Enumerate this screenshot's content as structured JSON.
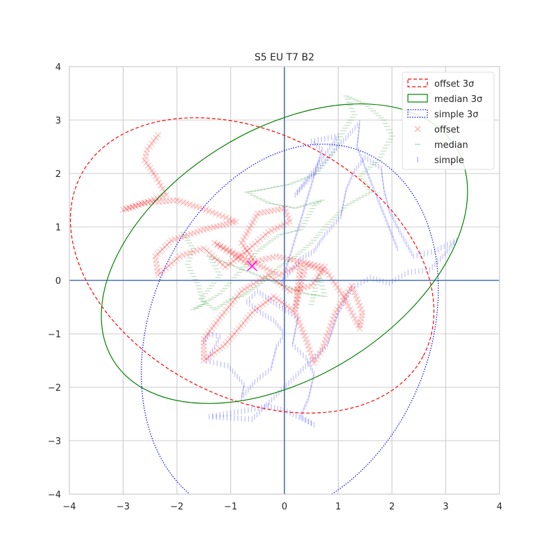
{
  "chart_data": {
    "type": "scatter",
    "title": "S5 EU T7 B2",
    "xlabel": "",
    "ylabel": "",
    "xlim": [
      -4,
      4
    ],
    "ylim": [
      -4,
      4
    ],
    "x_ticks": [
      -4,
      -3,
      -2,
      -1,
      0,
      1,
      2,
      3,
      4
    ],
    "y_ticks": [
      -4,
      -3,
      -2,
      -1,
      0,
      1,
      2,
      3,
      4
    ],
    "grid": true,
    "legend_position": "top-right",
    "zero_lines": true,
    "legend": [
      {
        "label": "offset 3σ",
        "kind": "ellipse",
        "color": "#ff0000",
        "dash": "dashed"
      },
      {
        "label": "median 3σ",
        "kind": "ellipse",
        "color": "#008000",
        "dash": "solid"
      },
      {
        "label": "simple 3σ",
        "kind": "ellipse",
        "color": "#0000ff",
        "dash": "dotted"
      },
      {
        "label": "offset",
        "kind": "marker",
        "marker": "x",
        "color": "#ff0000"
      },
      {
        "label": "median",
        "kind": "marker",
        "marker": "_",
        "color": "#008000"
      },
      {
        "label": "simple",
        "kind": "marker",
        "marker": "|",
        "color": "#0000ff"
      }
    ],
    "ellipses": [
      {
        "name": "offset 3σ",
        "center": [
          -0.6,
          0.28
        ],
        "semi_major": 3.6,
        "semi_minor": 2.45,
        "angle_deg": -28,
        "color": "#ff0000",
        "dash": "dashed"
      },
      {
        "name": "median 3σ",
        "center": [
          0.0,
          0.5
        ],
        "semi_major": 3.75,
        "semi_minor": 2.3,
        "angle_deg": 32,
        "color": "#008000",
        "dash": "solid"
      },
      {
        "name": "simple 3σ",
        "center": [
          0.1,
          -0.95
        ],
        "semi_major": 3.6,
        "semi_minor": 2.6,
        "angle_deg": 68,
        "color": "#0000ff",
        "dash": "dotted"
      }
    ],
    "series": [
      {
        "name": "offset",
        "marker": "x",
        "color": "#ff0000",
        "points": [
          [
            -2.35,
            2.72
          ],
          [
            -2.55,
            2.45
          ],
          [
            -2.6,
            2.25
          ],
          [
            -2.4,
            1.95
          ],
          [
            -2.2,
            1.6
          ],
          [
            -2.6,
            1.45
          ],
          [
            -3.0,
            1.32
          ],
          [
            -2.6,
            1.45
          ],
          [
            -2.0,
            1.5
          ],
          [
            -1.4,
            1.3
          ],
          [
            -0.9,
            1.1
          ],
          [
            -1.5,
            0.95
          ],
          [
            -2.1,
            0.75
          ],
          [
            -2.4,
            0.45
          ],
          [
            -2.35,
            0.1
          ],
          [
            -1.95,
            0.45
          ],
          [
            -1.5,
            0.6
          ],
          [
            -1.1,
            0.25
          ],
          [
            -0.7,
            0.55
          ],
          [
            -0.3,
            0.9
          ],
          [
            0.1,
            1.1
          ],
          [
            0.0,
            1.35
          ],
          [
            -0.5,
            1.25
          ],
          [
            -0.8,
            0.7
          ],
          [
            -0.55,
            0.35
          ],
          [
            -0.15,
            0.45
          ],
          [
            0.3,
            0.35
          ],
          [
            0.75,
            0.25
          ],
          [
            0.5,
            -0.1
          ],
          [
            0.1,
            -0.2
          ],
          [
            -0.3,
            0.1
          ],
          [
            -0.8,
            -0.2
          ],
          [
            -1.2,
            -0.7
          ],
          [
            -1.5,
            -1.1
          ],
          [
            -1.5,
            -1.5
          ],
          [
            -1.1,
            -1.2
          ],
          [
            -0.6,
            -0.6
          ],
          [
            -0.2,
            -0.3
          ],
          [
            0.2,
            -0.6
          ],
          [
            0.4,
            -1.1
          ],
          [
            0.55,
            -1.55
          ],
          [
            0.7,
            -1.3
          ],
          [
            0.95,
            -0.6
          ],
          [
            1.25,
            -0.1
          ],
          [
            1.45,
            -0.6
          ],
          [
            1.4,
            -0.9
          ],
          [
            1.1,
            -0.3
          ],
          [
            0.8,
            0.15
          ],
          [
            0.4,
            0.3
          ],
          [
            0.2,
            -0.55
          ],
          [
            0.3,
            0.3
          ],
          [
            -0.1,
            0.1
          ],
          [
            -0.9,
            0.5
          ],
          [
            -1.3,
            0.7
          ],
          [
            -0.6,
            0.25
          ]
        ]
      },
      {
        "name": "median",
        "marker": "_",
        "color": "#008000",
        "points": [
          [
            -1.9,
            0.9
          ],
          [
            -1.7,
            0.6
          ],
          [
            -1.8,
            0.3
          ],
          [
            -1.6,
            -0.1
          ],
          [
            -1.5,
            -0.45
          ],
          [
            -1.7,
            -0.55
          ],
          [
            -1.2,
            -0.25
          ],
          [
            -0.8,
            0.2
          ],
          [
            -0.5,
            0.55
          ],
          [
            -0.1,
            0.85
          ],
          [
            0.3,
            0.95
          ],
          [
            0.55,
            1.4
          ],
          [
            0.7,
            1.5
          ],
          [
            0.2,
            1.35
          ],
          [
            -0.3,
            1.45
          ],
          [
            -0.7,
            1.65
          ],
          [
            -0.4,
            1.7
          ],
          [
            0.1,
            1.8
          ],
          [
            0.6,
            2.0
          ],
          [
            0.9,
            2.4
          ],
          [
            1.1,
            2.8
          ],
          [
            1.3,
            3.1
          ],
          [
            1.15,
            3.45
          ],
          [
            1.5,
            3.3
          ],
          [
            1.85,
            3.0
          ],
          [
            2.0,
            2.7
          ],
          [
            1.75,
            2.25
          ],
          [
            1.4,
            1.95
          ],
          [
            1.6,
            1.65
          ],
          [
            1.15,
            1.4
          ],
          [
            0.8,
            1.05
          ],
          [
            0.5,
            0.7
          ],
          [
            0.2,
            0.45
          ],
          [
            -0.1,
            0.25
          ],
          [
            -0.5,
            -0.1
          ],
          [
            -0.8,
            -0.3
          ],
          [
            -1.0,
            -0.35
          ],
          [
            -1.3,
            -0.55
          ],
          [
            -1.55,
            -0.35
          ],
          [
            -1.2,
            0.1
          ],
          [
            -1.4,
            0.45
          ],
          [
            0.0,
            -0.1
          ],
          [
            0.4,
            -0.25
          ],
          [
            0.75,
            -0.3
          ],
          [
            0.65,
            0.1
          ],
          [
            0.5,
            -0.45
          ]
        ]
      },
      {
        "name": "simple",
        "marker": "|",
        "color": "#0000ff",
        "points": [
          [
            -1.5,
            -1.15
          ],
          [
            -1.4,
            -1.0
          ],
          [
            -1.2,
            -1.05
          ],
          [
            -1.3,
            -1.25
          ],
          [
            -1.45,
            -1.5
          ],
          [
            -1.05,
            -1.6
          ],
          [
            -0.75,
            -1.95
          ],
          [
            -0.8,
            -2.2
          ],
          [
            -0.55,
            -1.9
          ],
          [
            -0.25,
            -1.65
          ],
          [
            -0.15,
            -1.25
          ],
          [
            0.0,
            -1.0
          ],
          [
            -0.2,
            -0.75
          ],
          [
            -0.45,
            -0.6
          ],
          [
            -0.7,
            -0.4
          ],
          [
            -0.5,
            -0.2
          ],
          [
            -0.15,
            -0.45
          ],
          [
            0.25,
            -0.7
          ],
          [
            0.15,
            -1.2
          ],
          [
            0.4,
            -1.45
          ],
          [
            0.55,
            -1.75
          ],
          [
            0.45,
            -2.2
          ],
          [
            0.3,
            -2.55
          ],
          [
            0.55,
            -2.7
          ],
          [
            0.05,
            -2.45
          ],
          [
            -0.3,
            -2.35
          ],
          [
            -0.8,
            -2.45
          ],
          [
            -1.4,
            -2.55
          ],
          [
            -0.6,
            -2.6
          ],
          [
            0.8,
            -1.2
          ],
          [
            1.0,
            -0.6
          ],
          [
            1.25,
            -0.15
          ],
          [
            1.6,
            0.05
          ],
          [
            1.95,
            -0.05
          ],
          [
            2.3,
            0.15
          ],
          [
            2.7,
            0.2
          ],
          [
            2.9,
            0.4
          ],
          [
            3.2,
            0.75
          ],
          [
            2.8,
            0.55
          ],
          [
            2.4,
            0.45
          ],
          [
            2.15,
            0.9
          ],
          [
            1.95,
            1.3
          ],
          [
            1.85,
            1.7
          ],
          [
            1.8,
            2.1
          ],
          [
            1.5,
            2.3
          ],
          [
            1.3,
            2.05
          ],
          [
            1.15,
            1.7
          ],
          [
            1.05,
            1.2
          ],
          [
            0.75,
            0.85
          ],
          [
            0.55,
            0.55
          ],
          [
            0.3,
            0.4
          ],
          [
            0.1,
            0.15
          ],
          [
            -0.05,
            -0.05
          ],
          [
            0.7,
            2.45
          ],
          [
            0.5,
            2.6
          ],
          [
            1.0,
            2.7
          ],
          [
            0.5,
            2.0
          ],
          [
            0.2,
            1.6
          ],
          [
            1.4,
            2.95
          ],
          [
            1.35,
            2.5
          ],
          [
            2.1,
            0.6
          ]
        ]
      }
    ],
    "mean_marker": {
      "x": -0.6,
      "y": 0.27,
      "color": "#ff00ff",
      "marker": "x"
    }
  }
}
